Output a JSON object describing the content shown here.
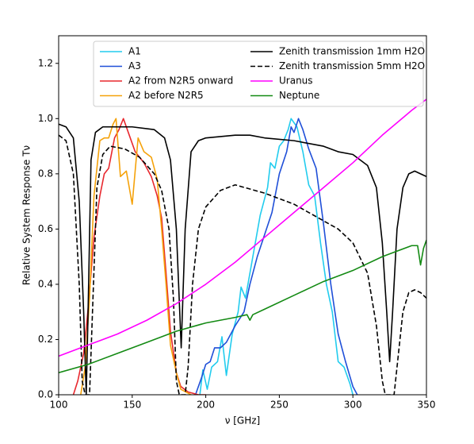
{
  "chart_data": {
    "type": "line",
    "xlabel": "ν [GHz]",
    "ylabel": "Relative System Response Tν",
    "xlim": [
      100,
      350
    ],
    "xticks": [
      100,
      150,
      200,
      250,
      300,
      350
    ],
    "ylim": [
      0,
      1.3
    ],
    "yticks": [
      {
        "value": 0,
        "label": "0.0"
      },
      {
        "value": 0.2,
        "label": "0.2"
      },
      {
        "value": 0.4,
        "label": "0.4"
      },
      {
        "value": 0.6,
        "label": "0.6"
      },
      {
        "value": 0.8,
        "label": "0.8"
      },
      {
        "value": 1.0,
        "label": "1.0"
      },
      {
        "value": 1.2,
        "label": "1.2"
      }
    ],
    "grid": false,
    "legend": "upper center",
    "legend_columns": 2,
    "series": [
      {
        "name": "A1",
        "color": "#22ccee",
        "linestyle": "solid",
        "x": [
          196,
          198,
          201,
          204,
          208,
          211,
          214,
          218,
          222,
          224,
          227,
          232,
          237,
          242,
          244,
          247,
          250,
          253,
          256,
          258,
          262,
          266,
          270,
          274,
          278,
          282,
          286,
          290,
          294,
          298,
          300
        ],
        "values": [
          0,
          0.09,
          0.02,
          0.1,
          0.12,
          0.21,
          0.07,
          0.22,
          0.3,
          0.39,
          0.35,
          0.5,
          0.65,
          0.75,
          0.84,
          0.82,
          0.9,
          0.92,
          0.96,
          1.0,
          0.97,
          0.88,
          0.76,
          0.72,
          0.55,
          0.4,
          0.3,
          0.12,
          0.1,
          0.04,
          0
        ]
      },
      {
        "name": "A3",
        "color": "#1f4fd8",
        "linestyle": "solid",
        "x": [
          193,
          197,
          200,
          203,
          206,
          210,
          214,
          220,
          226,
          230,
          235,
          240,
          245,
          250,
          255,
          258,
          260,
          263,
          266,
          270,
          275,
          280,
          285,
          290,
          295,
          300,
          303
        ],
        "values": [
          0,
          0.06,
          0.11,
          0.12,
          0.17,
          0.17,
          0.19,
          0.25,
          0.3,
          0.4,
          0.5,
          0.58,
          0.66,
          0.8,
          0.88,
          0.97,
          0.95,
          1.0,
          0.96,
          0.89,
          0.82,
          0.62,
          0.4,
          0.22,
          0.12,
          0.03,
          0
        ]
      },
      {
        "name": "A2 from N2R5 onward",
        "color": "#e8282e",
        "linestyle": "solid",
        "x": [
          110,
          113,
          117,
          120,
          124,
          128,
          131,
          134,
          138,
          141,
          144,
          148,
          152,
          158,
          163,
          167,
          170,
          173,
          176,
          180,
          183,
          188,
          195,
          200
        ],
        "values": [
          0,
          0.05,
          0.15,
          0.31,
          0.57,
          0.72,
          0.8,
          0.82,
          0.93,
          0.96,
          1.0,
          0.94,
          0.88,
          0.84,
          0.79,
          0.72,
          0.64,
          0.44,
          0.23,
          0.08,
          0.03,
          0.01,
          0,
          0
        ]
      },
      {
        "name": "A2 before N2R5",
        "color": "#f5a20a",
        "linestyle": "solid",
        "x": [
          115,
          118,
          121,
          124,
          128,
          131,
          134,
          137,
          139,
          142,
          146,
          150,
          154,
          158,
          163,
          167,
          170,
          173,
          176,
          180,
          183,
          190
        ],
        "values": [
          0,
          0.1,
          0.35,
          0.72,
          0.92,
          0.93,
          0.93,
          0.98,
          1.0,
          0.79,
          0.81,
          0.69,
          0.93,
          0.88,
          0.86,
          0.78,
          0.6,
          0.4,
          0.18,
          0.08,
          0.02,
          0
        ]
      },
      {
        "name": "Zenith transmission 1mm H2O",
        "color": "#000000",
        "linestyle": "solid",
        "x": [
          100,
          105,
          110,
          114,
          117,
          118.75,
          120,
          122,
          125,
          130,
          150,
          165,
          172,
          176,
          180,
          183.3,
          186,
          190,
          195,
          200,
          220,
          230,
          240,
          260,
          280,
          290,
          300,
          310,
          316,
          320,
          323,
          325,
          327,
          330,
          334,
          338,
          342,
          346,
          350
        ],
        "values": [
          0.98,
          0.97,
          0.93,
          0.7,
          0.3,
          0,
          0.3,
          0.85,
          0.95,
          0.97,
          0.97,
          0.96,
          0.93,
          0.85,
          0.6,
          0.17,
          0.6,
          0.88,
          0.92,
          0.93,
          0.94,
          0.94,
          0.93,
          0.92,
          0.9,
          0.88,
          0.87,
          0.83,
          0.75,
          0.55,
          0.3,
          0.12,
          0.3,
          0.6,
          0.75,
          0.8,
          0.81,
          0.8,
          0.79
        ]
      },
      {
        "name": "Zenith transmission 5mm H2O",
        "color": "#000000",
        "linestyle": "dashed",
        "x": [
          100,
          105,
          110,
          114,
          116,
          118,
          121,
          123,
          126,
          130,
          135,
          145,
          155,
          165,
          170,
          175,
          178,
          180,
          182,
          186,
          188,
          191,
          195,
          200,
          210,
          220,
          240,
          260,
          270,
          280,
          290,
          300,
          310,
          316,
          320,
          322,
          328,
          330,
          334,
          338,
          342,
          346,
          350
        ],
        "values": [
          0.94,
          0.92,
          0.8,
          0.4,
          0.05,
          0,
          0,
          0.3,
          0.75,
          0.87,
          0.9,
          0.89,
          0.86,
          0.8,
          0.74,
          0.6,
          0.35,
          0.05,
          0,
          0,
          0.1,
          0.4,
          0.6,
          0.68,
          0.74,
          0.76,
          0.73,
          0.69,
          0.66,
          0.63,
          0.6,
          0.55,
          0.44,
          0.25,
          0.05,
          0,
          0,
          0.1,
          0.3,
          0.37,
          0.38,
          0.37,
          0.35
        ]
      },
      {
        "name": "Uranus",
        "color": "#ff00ff",
        "linestyle": "solid",
        "x": [
          100,
          120,
          140,
          160,
          180,
          200,
          220,
          240,
          260,
          280,
          300,
          320,
          340,
          350
        ],
        "values": [
          0.14,
          0.18,
          0.22,
          0.27,
          0.33,
          0.4,
          0.48,
          0.57,
          0.66,
          0.75,
          0.84,
          0.94,
          1.03,
          1.07
        ]
      },
      {
        "name": "Neptune",
        "color": "#138a13",
        "linestyle": "solid",
        "x": [
          100,
          120,
          140,
          160,
          180,
          200,
          220,
          228,
          230,
          232,
          240,
          260,
          280,
          300,
          320,
          340,
          344,
          346,
          348,
          350
        ],
        "values": [
          0.08,
          0.11,
          0.15,
          0.19,
          0.23,
          0.26,
          0.28,
          0.29,
          0.27,
          0.29,
          0.31,
          0.36,
          0.41,
          0.45,
          0.5,
          0.54,
          0.54,
          0.47,
          0.53,
          0.56
        ]
      }
    ]
  }
}
